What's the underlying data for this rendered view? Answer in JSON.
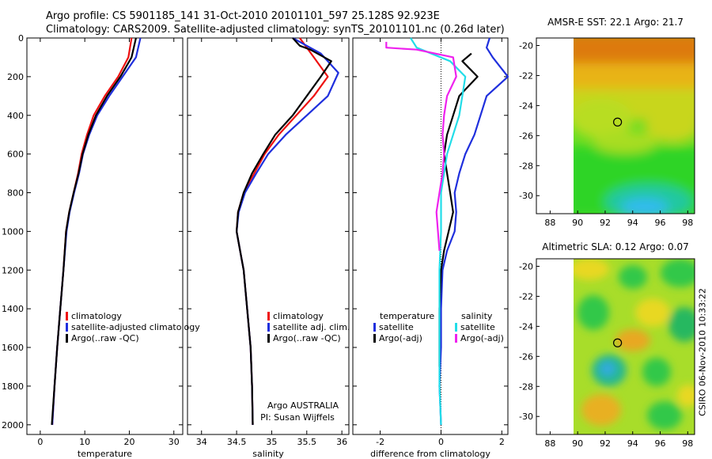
{
  "header": {
    "line1": "Argo profile: CS 5901185_141 31-Oct-2010 20101101_597 25.128S 92.923E",
    "line2": "Climatology: CARS2009. Satellite-adjusted climatology: synTS_20101101.nc (0.26d later)"
  },
  "side_label": "CSIRO 06-Nov-2010 10:33:22",
  "colors": {
    "red": "#ee1111",
    "blue": "#1f2fdd",
    "black": "#000000",
    "cyan": "#22dde8",
    "magenta": "#ee22ee"
  },
  "chart_data": [
    {
      "type": "line",
      "xlabel": "temperature",
      "xticks": [
        "0",
        "10",
        "20",
        "30"
      ],
      "xlim": [
        -3,
        32
      ],
      "yticks": [
        "0",
        "200",
        "400",
        "600",
        "800",
        "1000",
        "1200",
        "1400",
        "1600",
        "1800",
        "2000"
      ],
      "ylim": [
        0,
        2050
      ],
      "legend": {
        "placement": "lower-right",
        "entries": [
          "climatology",
          "satellite-adjusted climatology",
          "Argo(..raw -QC)"
        ]
      },
      "series": [
        {
          "name": "climatology",
          "color": "red",
          "points": [
            [
              20.5,
              0
            ],
            [
              19.8,
              100
            ],
            [
              17.5,
              200
            ],
            [
              14.5,
              300
            ],
            [
              12,
              400
            ],
            [
              10.5,
              500
            ],
            [
              9.3,
              600
            ],
            [
              8.5,
              700
            ],
            [
              7.5,
              800
            ],
            [
              6.5,
              900
            ],
            [
              5.8,
              1000
            ],
            [
              5.2,
              1200
            ],
            [
              4.5,
              1400
            ],
            [
              3.8,
              1600
            ],
            [
              3.2,
              1800
            ],
            [
              2.7,
              2000
            ]
          ]
        },
        {
          "name": "satellite-adjusted climatology",
          "color": "blue",
          "points": [
            [
              22.5,
              0
            ],
            [
              21.5,
              100
            ],
            [
              18.5,
              200
            ],
            [
              15.5,
              300
            ],
            [
              12.8,
              400
            ],
            [
              11,
              500
            ],
            [
              9.6,
              600
            ],
            [
              8.7,
              700
            ],
            [
              7.6,
              800
            ],
            [
              6.6,
              900
            ],
            [
              5.9,
              1000
            ],
            [
              5.2,
              1200
            ],
            [
              4.5,
              1400
            ],
            [
              3.8,
              1600
            ],
            [
              3.2,
              1800
            ],
            [
              2.7,
              2000
            ]
          ]
        },
        {
          "name": "Argo(..raw -QC)",
          "color": "black",
          "points": [
            [
              21.5,
              0
            ],
            [
              20.5,
              100
            ],
            [
              18,
              200
            ],
            [
              15,
              300
            ],
            [
              12.5,
              400
            ],
            [
              10.8,
              500
            ],
            [
              9.5,
              600
            ],
            [
              8.6,
              700
            ],
            [
              7.5,
              800
            ],
            [
              6.5,
              900
            ],
            [
              5.8,
              1000
            ],
            [
              5.2,
              1200
            ],
            [
              4.5,
              1400
            ],
            [
              3.8,
              1600
            ],
            [
              3.2,
              1800
            ],
            [
              2.6,
              2000
            ]
          ]
        }
      ]
    },
    {
      "type": "line",
      "xlabel": "salinity",
      "xticks": [
        "34",
        "34.5",
        "35",
        "35.5",
        "36"
      ],
      "xlim": [
        33.8,
        36.1
      ],
      "ylim": [
        0,
        2050
      ],
      "legend": {
        "placement": "lower-right",
        "entries": [
          "climatology",
          "satellite adj. clim.",
          "Argo(..raw -QC)"
        ]
      },
      "annotation": [
        "Argo AUSTRALIA",
        "PI: Susan Wijffels"
      ],
      "series": [
        {
          "name": "climatology",
          "color": "red",
          "points": [
            [
              35.4,
              0
            ],
            [
              35.6,
              100
            ],
            [
              35.8,
              200
            ],
            [
              35.6,
              300
            ],
            [
              35.35,
              400
            ],
            [
              35.1,
              500
            ],
            [
              34.9,
              600
            ],
            [
              34.75,
              700
            ],
            [
              34.6,
              800
            ],
            [
              34.52,
              900
            ],
            [
              34.5,
              1000
            ],
            [
              34.55,
              1100
            ],
            [
              34.6,
              1200
            ],
            [
              34.65,
              1400
            ],
            [
              34.7,
              1600
            ],
            [
              34.72,
              1800
            ],
            [
              34.73,
              2000
            ]
          ]
        },
        {
          "name": "satellite adj. clim.",
          "color": "blue",
          "points": [
            [
              35.3,
              0
            ],
            [
              35.7,
              80
            ],
            [
              35.95,
              180
            ],
            [
              35.8,
              300
            ],
            [
              35.5,
              400
            ],
            [
              35.2,
              500
            ],
            [
              34.95,
              600
            ],
            [
              34.78,
              700
            ],
            [
              34.62,
              800
            ],
            [
              34.53,
              900
            ],
            [
              34.5,
              1000
            ],
            [
              34.55,
              1100
            ],
            [
              34.6,
              1200
            ],
            [
              34.65,
              1400
            ],
            [
              34.7,
              1600
            ],
            [
              34.72,
              1800
            ],
            [
              34.73,
              2000
            ]
          ]
        },
        {
          "name": "Argo(..raw -QC)",
          "color": "black",
          "points": [
            [
              35.3,
              0
            ],
            [
              35.4,
              40
            ],
            [
              35.55,
              60
            ],
            [
              35.85,
              120
            ],
            [
              35.7,
              200
            ],
            [
              35.5,
              300
            ],
            [
              35.3,
              400
            ],
            [
              35.05,
              500
            ],
            [
              34.88,
              600
            ],
            [
              34.72,
              700
            ],
            [
              34.6,
              800
            ],
            [
              34.52,
              900
            ],
            [
              34.5,
              1000
            ],
            [
              34.55,
              1100
            ],
            [
              34.6,
              1200
            ],
            [
              34.65,
              1400
            ],
            [
              34.7,
              1600
            ],
            [
              34.72,
              1800
            ],
            [
              34.73,
              2000
            ]
          ]
        }
      ]
    },
    {
      "type": "line",
      "xlabel": "difference from climatology",
      "xticks": [
        "-2",
        "0",
        "2"
      ],
      "xlim": [
        -2.9,
        2.2
      ],
      "ylim": [
        0,
        2050
      ],
      "legend": {
        "placement": "lower-center",
        "entries": [
          "temperature",
          "satellite",
          "Argo(-adj)",
          "salinity",
          "satellite",
          "Argo(-adj)"
        ]
      },
      "series": [
        {
          "name": "satellite",
          "color": "blue",
          "points": [
            [
              1.6,
              0
            ],
            [
              1.5,
              50
            ],
            [
              1.7,
              100
            ],
            [
              2.2,
              200
            ],
            [
              1.5,
              300
            ],
            [
              1.3,
              400
            ],
            [
              1.1,
              500
            ],
            [
              0.8,
              600
            ],
            [
              0.6,
              700
            ],
            [
              0.45,
              800
            ],
            [
              0.5,
              900
            ],
            [
              0.45,
              1000
            ],
            [
              0.2,
              1100
            ],
            [
              0.05,
              1200
            ],
            [
              0,
              1400
            ],
            [
              0,
              1600
            ],
            [
              -0.05,
              1800
            ],
            [
              0,
              2000
            ]
          ]
        },
        {
          "name": "Argo(-adj)",
          "color": "black",
          "points": [
            [
              1.0,
              80
            ],
            [
              0.7,
              120
            ],
            [
              1.2,
              200
            ],
            [
              0.6,
              300
            ],
            [
              0.4,
              400
            ],
            [
              0.2,
              500
            ],
            [
              0.1,
              600
            ],
            [
              0.2,
              700
            ],
            [
              0.3,
              800
            ],
            [
              0.4,
              900
            ],
            [
              0.25,
              1000
            ],
            [
              0.1,
              1100
            ],
            [
              0,
              1200
            ],
            [
              -0.05,
              1400
            ],
            [
              -0.05,
              1600
            ],
            [
              -0.05,
              1700
            ]
          ]
        },
        {
          "name": "satellite",
          "color": "cyan",
          "points": [
            [
              -1.0,
              0
            ],
            [
              -0.8,
              50
            ],
            [
              0.3,
              120
            ],
            [
              0.8,
              200
            ],
            [
              0.7,
              300
            ],
            [
              0.6,
              400
            ],
            [
              0.4,
              500
            ],
            [
              0.2,
              600
            ],
            [
              0.1,
              700
            ],
            [
              0,
              800
            ],
            [
              0,
              1000
            ],
            [
              -0.05,
              1200
            ],
            [
              -0.05,
              1400
            ],
            [
              -0.05,
              1600
            ],
            [
              -0.05,
              1800
            ],
            [
              0,
              2000
            ]
          ]
        },
        {
          "name": "Argo(-adj)",
          "color": "magenta",
          "points": [
            [
              -1.8,
              20
            ],
            [
              -1.8,
              50
            ],
            [
              -0.8,
              60
            ],
            [
              0.4,
              100
            ],
            [
              0.5,
              200
            ],
            [
              0.2,
              300
            ],
            [
              0.1,
              400
            ],
            [
              0.05,
              500
            ],
            [
              0.1,
              600
            ],
            [
              0.05,
              700
            ],
            [
              -0.05,
              800
            ],
            [
              -0.15,
              900
            ],
            [
              -0.1,
              1000
            ],
            [
              -0.05,
              1100
            ]
          ]
        }
      ]
    },
    {
      "type": "heatmap",
      "title": "AMSR-E SST: 22.1 Argo: 21.7",
      "xticks": [
        "88",
        "90",
        "92",
        "94",
        "96",
        "98"
      ],
      "yticks": [
        "-20",
        "-22",
        "-24",
        "-26",
        "-28",
        "-30"
      ],
      "xlim": [
        87,
        98.5
      ],
      "ylim": [
        -31.2,
        -19.5
      ],
      "marker": [
        92.9,
        -25.1
      ]
    },
    {
      "type": "heatmap",
      "title": "Altimetric SLA: 0.12 Argo: 0.07",
      "xticks": [
        "88",
        "90",
        "92",
        "94",
        "96",
        "98"
      ],
      "yticks": [
        "-20",
        "-22",
        "-24",
        "-26",
        "-28",
        "-30"
      ],
      "xlim": [
        87,
        98.5
      ],
      "ylim": [
        -31.2,
        -19.5
      ],
      "marker": [
        92.9,
        -25.1
      ]
    }
  ]
}
